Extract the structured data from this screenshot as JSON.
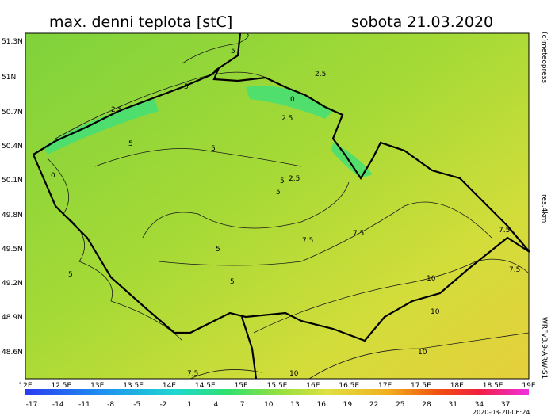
{
  "header": {
    "title": "max. denni teplota [stC]",
    "date": "sobota 21.03.2020"
  },
  "side_labels": {
    "copyright": "(c)meteopress",
    "resolution": "res.4km",
    "model": "WRFv3.9-ARW-S1"
  },
  "timestamp": "2020-03-20-06:24",
  "lat_labels": [
    "51.3N",
    "51N",
    "50.7N",
    "50.4N",
    "50.1N",
    "49.8N",
    "49.5N",
    "49.2N",
    "48.9N",
    "48.6N"
  ],
  "lon_labels": [
    "12E",
    "12.5E",
    "13E",
    "13.5E",
    "14E",
    "14.5E",
    "15E",
    "15.5E",
    "16E",
    "16.5E",
    "17E",
    "17.5E",
    "18E",
    "18.5E",
    "19E"
  ],
  "colorbar_ticks": [
    -17,
    -14,
    -11,
    -8,
    -5,
    -2,
    1,
    4,
    7,
    10,
    13,
    16,
    19,
    22,
    25,
    28,
    31,
    34,
    37
  ],
  "contour_labels": [
    "5",
    "5",
    "2.5",
    "2.5",
    "2.5",
    "0",
    "5",
    "5",
    "5",
    "5",
    "5",
    "2.5",
    "0",
    "5",
    "7.5",
    "7.5",
    "7.5",
    "7.5",
    "10",
    "5",
    "10",
    "10",
    "7.5",
    "10"
  ]
}
